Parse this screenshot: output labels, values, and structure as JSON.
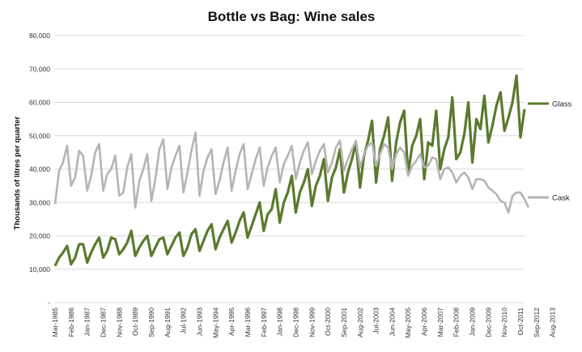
{
  "chart_data": {
    "type": "line",
    "title": "Bottle vs Bag: Wine sales",
    "xlabel": "",
    "ylabel": "Thousands of litres per quarter",
    "ylim": [
      0,
      80000
    ],
    "yticks": [
      "-",
      "10,000",
      "20,000",
      "30,000",
      "40,000",
      "50,000",
      "60,000",
      "70,000",
      "80,000"
    ],
    "grid": true,
    "legend_position": "right",
    "x_tick_labels": [
      "Mar-1985",
      "Feb-1986",
      "Jan-1987",
      "Dec-1987",
      "Nov-1988",
      "Oct-1989",
      "Sep-1990",
      "Aug-1991",
      "Jul-1992",
      "Jun-1993",
      "May-1994",
      "Apr-1995",
      "Mar-1996",
      "Feb-1997",
      "Jan-1998",
      "Dec-1998",
      "Nov-1999",
      "Oct-2000",
      "Sep-2001",
      "Aug-2002",
      "Jul-2003",
      "Jun-2004",
      "May-2005",
      "Apr-2006",
      "Mar-2007",
      "Feb-2008",
      "Jan-2009",
      "Dec-2009",
      "Nov-2010",
      "Oct-2011",
      "Sep-2012",
      "Aug-2013"
    ],
    "x_start": "Mar-1985",
    "frequency": "quarterly",
    "series": [
      {
        "name": "Glass",
        "color": "#5a7a2e",
        "values": [
          11000,
          13500,
          15000,
          17000,
          11500,
          13500,
          17500,
          17500,
          12000,
          15000,
          17500,
          19500,
          13500,
          15500,
          19500,
          19000,
          14500,
          16000,
          18000,
          21500,
          14000,
          16500,
          18500,
          20000,
          14000,
          16500,
          19000,
          19500,
          14500,
          17000,
          19500,
          21000,
          14000,
          16500,
          20500,
          22000,
          15500,
          18500,
          21500,
          23500,
          16000,
          19500,
          22000,
          24500,
          18000,
          21000,
          24500,
          27000,
          19500,
          23000,
          26500,
          30000,
          21500,
          26500,
          28000,
          34000,
          24000,
          30000,
          33000,
          38000,
          27000,
          33000,
          36000,
          40000,
          29000,
          35000,
          38000,
          43000,
          30500,
          37500,
          40500,
          46000,
          33000,
          39000,
          43000,
          48000,
          34500,
          44000,
          48500,
          54500,
          36000,
          46000,
          50000,
          55500,
          36500,
          48000,
          54000,
          57500,
          38500,
          47000,
          50000,
          55000,
          37000,
          48000,
          47000,
          57500,
          40000,
          46000,
          49500,
          61500,
          43000,
          45000,
          50500,
          60000,
          42000,
          55000,
          52000,
          62000,
          48000,
          53000,
          59000,
          63000,
          51500,
          55500,
          60000,
          68000,
          49500,
          58000
        ]
      },
      {
        "name": "Cask",
        "color": "#b4b4b4",
        "values": [
          29500,
          39500,
          42000,
          47000,
          35000,
          37500,
          45500,
          44000,
          33500,
          38000,
          45000,
          47500,
          33500,
          38500,
          40000,
          44000,
          32000,
          33000,
          40500,
          44500,
          28500,
          36500,
          40000,
          44500,
          30500,
          37000,
          46000,
          49000,
          34000,
          40500,
          44000,
          47000,
          33000,
          39000,
          45500,
          51000,
          32000,
          39500,
          43500,
          46000,
          32500,
          36500,
          42000,
          46500,
          33500,
          39500,
          44500,
          47500,
          34000,
          38500,
          43000,
          46500,
          35000,
          40500,
          44000,
          46500,
          36000,
          41500,
          44000,
          47000,
          37000,
          42000,
          45500,
          48000,
          38500,
          42500,
          45500,
          47500,
          39000,
          42000,
          46500,
          48500,
          39500,
          43000,
          46000,
          48500,
          40500,
          44500,
          47000,
          48000,
          41000,
          44500,
          47500,
          46500,
          40000,
          44500,
          46500,
          45000,
          38000,
          41000,
          42500,
          44500,
          40500,
          41000,
          43500,
          43000,
          37000,
          40000,
          40500,
          39000,
          36000,
          38000,
          39000,
          37500,
          34000,
          37000,
          37000,
          36500,
          34500,
          33500,
          32500,
          30500,
          30000,
          27000,
          32000,
          33000,
          33000,
          31000,
          28500
        ]
      }
    ]
  }
}
